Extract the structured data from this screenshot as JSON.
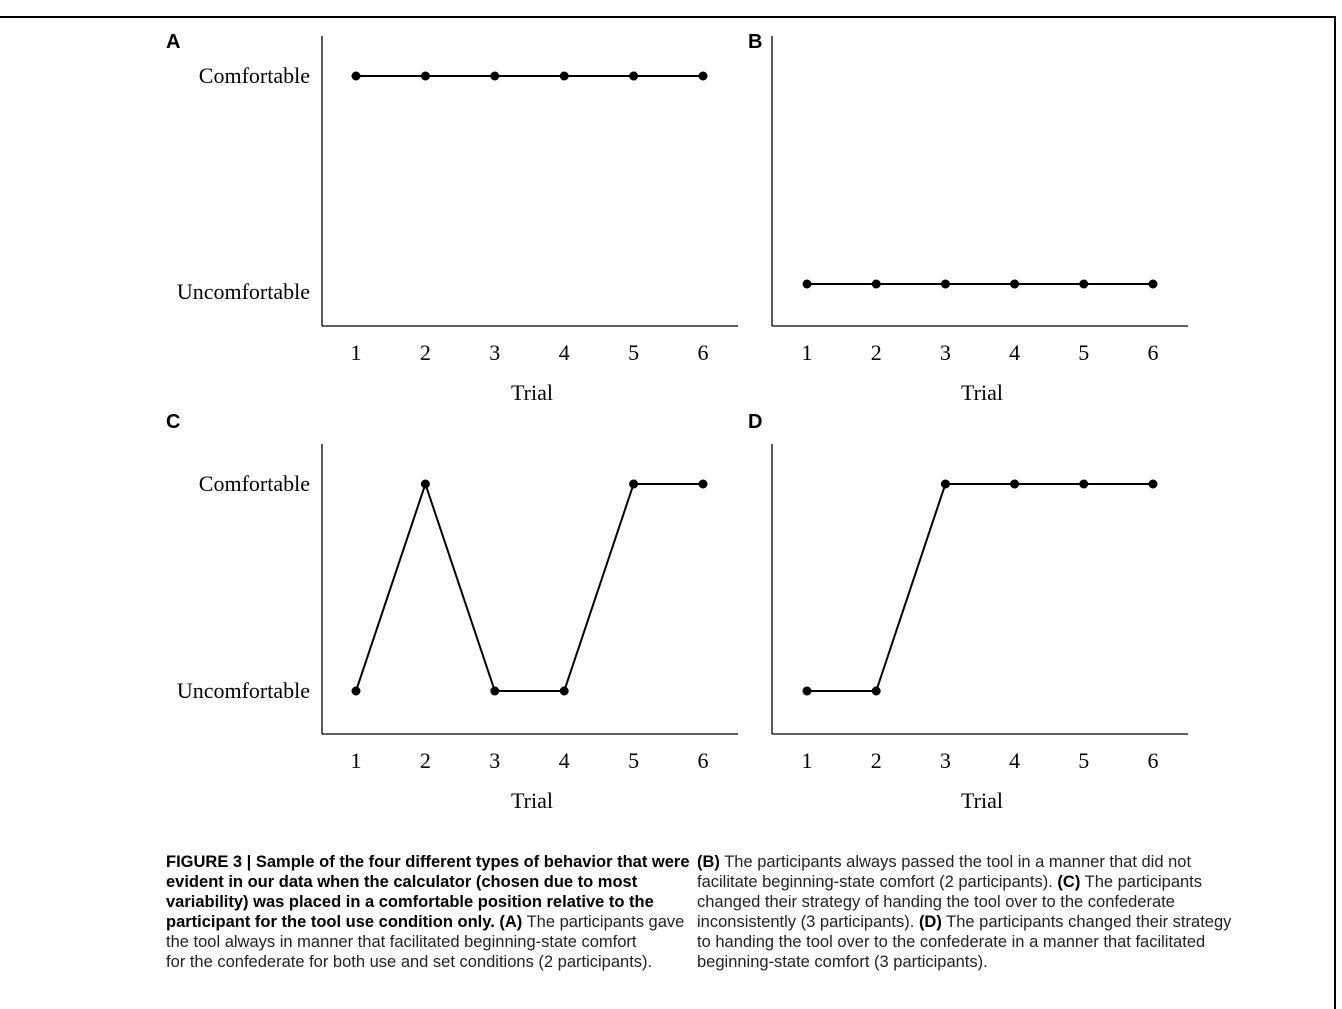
{
  "chart_data": [
    {
      "panel": "A",
      "type": "line",
      "x": [
        1,
        2,
        3,
        4,
        5,
        6
      ],
      "y": [
        "Comfortable",
        "Comfortable",
        "Comfortable",
        "Comfortable",
        "Comfortable",
        "Comfortable"
      ],
      "y_levels": [
        "Uncomfortable",
        "Comfortable"
      ],
      "xlabel": "Trial",
      "x_ticks": [
        "1",
        "2",
        "3",
        "4",
        "5",
        "6"
      ],
      "y_ticks": [
        "Comfortable",
        "Uncomfortable"
      ]
    },
    {
      "panel": "B",
      "type": "line",
      "x": [
        1,
        2,
        3,
        4,
        5,
        6
      ],
      "y": [
        "Uncomfortable",
        "Uncomfortable",
        "Uncomfortable",
        "Uncomfortable",
        "Uncomfortable",
        "Uncomfortable"
      ],
      "y_levels": [
        "Uncomfortable",
        "Comfortable"
      ],
      "xlabel": "Trial",
      "x_ticks": [
        "1",
        "2",
        "3",
        "4",
        "5",
        "6"
      ],
      "y_ticks": []
    },
    {
      "panel": "C",
      "type": "line",
      "x": [
        1,
        2,
        3,
        4,
        5,
        6
      ],
      "y": [
        "Uncomfortable",
        "Comfortable",
        "Uncomfortable",
        "Uncomfortable",
        "Comfortable",
        "Comfortable"
      ],
      "y_levels": [
        "Uncomfortable",
        "Comfortable"
      ],
      "xlabel": "Trial",
      "x_ticks": [
        "1",
        "2",
        "3",
        "4",
        "5",
        "6"
      ],
      "y_ticks": [
        "Comfortable",
        "Uncomfortable"
      ]
    },
    {
      "panel": "D",
      "type": "line",
      "x": [
        1,
        2,
        3,
        4,
        5,
        6
      ],
      "y": [
        "Uncomfortable",
        "Uncomfortable",
        "Comfortable",
        "Comfortable",
        "Comfortable",
        "Comfortable"
      ],
      "y_levels": [
        "Uncomfortable",
        "Comfortable"
      ],
      "xlabel": "Trial",
      "x_ticks": [
        "1",
        "2",
        "3",
        "4",
        "5",
        "6"
      ],
      "y_ticks": []
    }
  ],
  "caption": {
    "left_lines": [
      [
        {
          "t": "FIGURE 3 | Sample of the four different types of behavior that were",
          "b": true
        }
      ],
      [
        {
          "t": "evident in our data when the calculator (chosen due to most",
          "b": true
        }
      ],
      [
        {
          "t": "variability) was placed in a comfortable position relative to the",
          "b": true
        }
      ],
      [
        {
          "t": "participant for the tool use condition only.",
          "b": true
        },
        {
          "t": " ",
          "b": false
        },
        {
          "t": "(A)",
          "b": true
        },
        {
          "t": " The participants gave",
          "b": false
        }
      ],
      [
        {
          "t": "the tool always in manner that facilitated beginning-state comfort",
          "b": false
        }
      ],
      [
        {
          "t": "for the confederate for both use and set conditions (2 participants).",
          "b": false
        }
      ]
    ],
    "right_lines": [
      [
        {
          "t": "(B)",
          "b": true
        },
        {
          "t": " The participants always passed the tool in a manner that did not",
          "b": false
        }
      ],
      [
        {
          "t": "facilitate beginning-state comfort (2 participants). ",
          "b": false
        },
        {
          "t": "(C)",
          "b": true
        },
        {
          "t": " The participants",
          "b": false
        }
      ],
      [
        {
          "t": "changed their strategy of handing the tool over to the confederate",
          "b": false
        }
      ],
      [
        {
          "t": "inconsistently (3 participants). ",
          "b": false
        },
        {
          "t": "(D)",
          "b": true
        },
        {
          "t": " The participants changed their strategy",
          "b": false
        }
      ],
      [
        {
          "t": "to handing the tool over to the confederate in a manner that facilitated",
          "b": false
        }
      ],
      [
        {
          "t": "beginning-state comfort (3 participants).",
          "b": false
        }
      ]
    ]
  }
}
